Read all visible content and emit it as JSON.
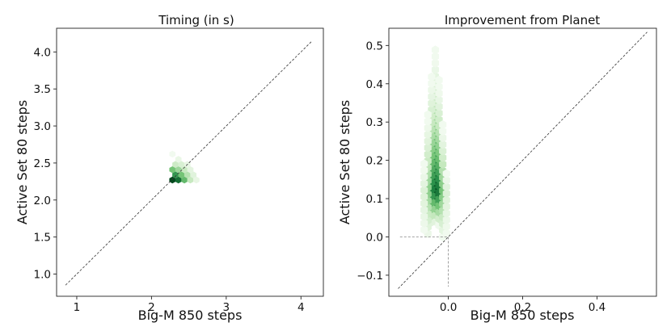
{
  "chart_data": [
    {
      "type": "hexbin",
      "title": "Timing (in s)",
      "xlabel": "Big-M 850 steps",
      "ylabel": "Active Set 80 steps",
      "xlim": [
        0.73,
        4.3
      ],
      "ylim": [
        0.7,
        4.32
      ],
      "xticks": [
        1,
        2,
        3,
        4
      ],
      "xtick_labels": [
        "1",
        "2",
        "3",
        "4"
      ],
      "yticks": [
        1.0,
        1.5,
        2.0,
        2.5,
        3.0,
        3.5,
        4.0
      ],
      "ytick_labels": [
        "1.0",
        "1.5",
        "2.0",
        "2.5",
        "3.0",
        "3.5",
        "4.0"
      ],
      "diagonal": [
        0.85,
        4.15
      ],
      "hex_radius_x": 0.048,
      "hex_radius_y": 0.046,
      "cells": [
        {
          "x": 2.28,
          "y": 2.27,
          "d": 0.98
        },
        {
          "x": 2.36,
          "y": 2.27,
          "d": 0.85
        },
        {
          "x": 2.44,
          "y": 2.27,
          "d": 0.55
        },
        {
          "x": 2.52,
          "y": 2.27,
          "d": 0.25
        },
        {
          "x": 2.6,
          "y": 2.27,
          "d": 0.08
        },
        {
          "x": 2.32,
          "y": 2.34,
          "d": 0.7
        },
        {
          "x": 2.4,
          "y": 2.34,
          "d": 0.5
        },
        {
          "x": 2.48,
          "y": 2.34,
          "d": 0.3
        },
        {
          "x": 2.56,
          "y": 2.34,
          "d": 0.12
        },
        {
          "x": 2.28,
          "y": 2.41,
          "d": 0.5
        },
        {
          "x": 2.36,
          "y": 2.41,
          "d": 0.38
        },
        {
          "x": 2.44,
          "y": 2.41,
          "d": 0.25
        },
        {
          "x": 2.52,
          "y": 2.41,
          "d": 0.1
        },
        {
          "x": 2.32,
          "y": 2.48,
          "d": 0.22
        },
        {
          "x": 2.4,
          "y": 2.48,
          "d": 0.16
        },
        {
          "x": 2.48,
          "y": 2.48,
          "d": 0.08
        },
        {
          "x": 2.36,
          "y": 2.55,
          "d": 0.07
        },
        {
          "x": 2.28,
          "y": 2.62,
          "d": 0.03
        }
      ]
    },
    {
      "type": "hexbin",
      "title": "Improvement from Planet",
      "xlabel": "Big-M 850 steps",
      "ylabel": "Active Set 80 steps",
      "xlim": [
        -0.16,
        0.56
      ],
      "ylim": [
        -0.155,
        0.545
      ],
      "xticks": [
        0.0,
        0.2,
        0.4
      ],
      "xtick_labels": [
        "0.0",
        "0.2",
        "0.4"
      ],
      "yticks": [
        -0.1,
        0.0,
        0.1,
        0.2,
        0.3,
        0.4,
        0.5
      ],
      "ytick_labels": [
        "−0.1",
        "0.0",
        "0.1",
        "0.2",
        "0.3",
        "0.4",
        "0.5"
      ],
      "diagonal": [
        -0.135,
        0.535
      ],
      "reference_point": [
        0.0,
        0.0
      ],
      "hex_radius_x": 0.0115,
      "hex_radius_y": 0.0115,
      "columns": [
        {
          "x": -0.035,
          "y0": 0.04,
          "y1": 0.49,
          "dmax": 1.0,
          "dlow": 0.05
        },
        {
          "x": -0.045,
          "y0": 0.03,
          "y1": 0.43,
          "dmax": 0.8,
          "dlow": 0.04
        },
        {
          "x": -0.025,
          "y0": 0.03,
          "y1": 0.41,
          "dmax": 0.85,
          "dlow": 0.04
        },
        {
          "x": -0.055,
          "y0": 0.0,
          "y1": 0.33,
          "dmax": 0.45,
          "dlow": 0.03
        },
        {
          "x": -0.015,
          "y0": 0.0,
          "y1": 0.3,
          "dmax": 0.5,
          "dlow": 0.03
        },
        {
          "x": -0.065,
          "y0": 0.01,
          "y1": 0.2,
          "dmax": 0.15,
          "dlow": 0.02
        },
        {
          "x": -0.005,
          "y0": 0.01,
          "y1": 0.18,
          "dmax": 0.15,
          "dlow": 0.02
        }
      ],
      "peak_y": 0.12
    }
  ]
}
